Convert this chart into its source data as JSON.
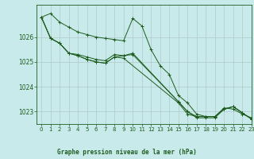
{
  "bg_color": "#c8eaea",
  "grid_color": "#b0c8c8",
  "line_color": "#1e5c1e",
  "marker_color": "#1e5c1e",
  "title": "Graphe pression niveau de la mer (hPa)",
  "xlim": [
    -0.5,
    23
  ],
  "ylim": [
    1022.5,
    1027.3
  ],
  "yticks": [
    1023,
    1024,
    1025,
    1026
  ],
  "xticks": [
    0,
    1,
    2,
    3,
    4,
    5,
    6,
    7,
    8,
    9,
    10,
    11,
    12,
    13,
    14,
    15,
    16,
    17,
    18,
    19,
    20,
    21,
    22,
    23
  ],
  "series": [
    [
      1026.8,
      1026.95,
      1026.6,
      1026.4,
      1026.2,
      1026.1,
      1026.0,
      1025.95,
      1025.9,
      1025.85,
      1026.75,
      1026.45,
      1025.5,
      1024.85,
      1024.5,
      1023.65,
      1023.35,
      1022.9,
      1022.8,
      1022.8,
      1023.15,
      1023.1,
      1022.9,
      1022.75
    ],
    [
      1026.8,
      1025.95,
      1025.75,
      1025.35,
      1025.3,
      1025.2,
      1025.1,
      1025.05,
      1025.3,
      1025.25,
      1025.3,
      null,
      null,
      null,
      null,
      1023.4,
      1023.0,
      1022.8,
      1022.8,
      1022.8,
      1023.1,
      1023.2,
      1022.95,
      1022.7
    ],
    [
      1026.8,
      1025.95,
      1025.75,
      1025.35,
      1025.25,
      1025.1,
      1025.0,
      1024.95,
      1025.2,
      1025.15,
      null,
      null,
      null,
      null,
      null,
      1023.35,
      1022.9,
      1022.8,
      1022.8,
      1022.8,
      1023.1,
      1023.2,
      1022.95,
      1022.7
    ],
    [
      1026.8,
      1025.95,
      1025.75,
      1025.35,
      1025.25,
      1025.1,
      1025.0,
      1024.95,
      1025.2,
      1025.25,
      1025.35,
      null,
      null,
      null,
      null,
      1023.4,
      1023.0,
      1022.75,
      1022.75,
      1022.75,
      1023.1,
      1023.2,
      1022.95,
      1022.7
    ]
  ]
}
